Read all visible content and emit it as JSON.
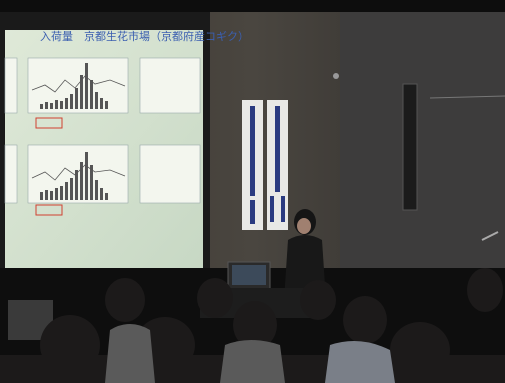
{
  "scene": {
    "slide_title": "入荷量　京都生花市場（京都府産コギク）"
  }
}
